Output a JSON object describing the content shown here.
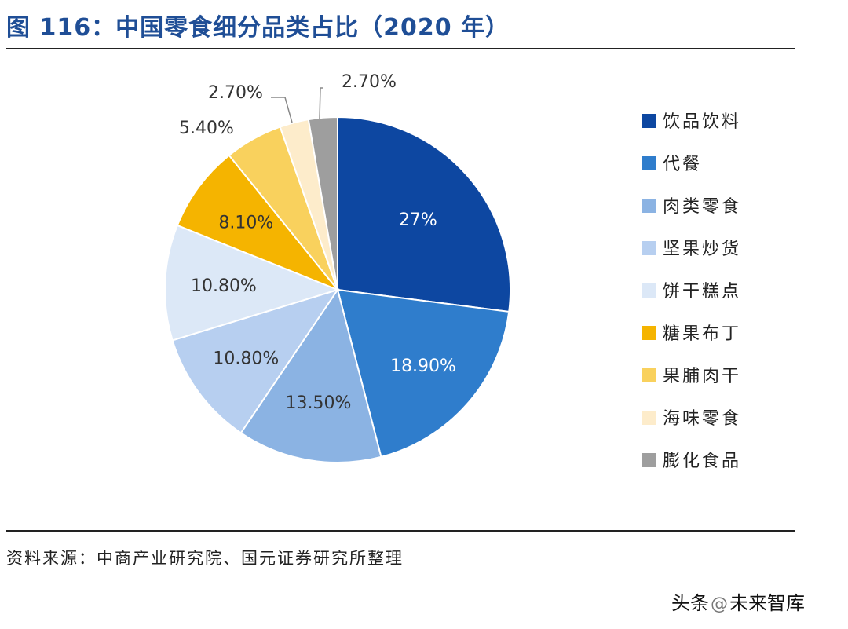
{
  "header": {
    "title": "图 116：中国零食细分品类占比（2020 年）"
  },
  "footer": {
    "source": "资料来源：中商产业研究院、国元证券研究所整理",
    "watermark_prefix": "头条",
    "watermark_name": "未来智库"
  },
  "chart_data": {
    "type": "pie",
    "title": "中国零食细分品类占比（2020 年）",
    "legend_position": "right",
    "start": "12 o'clock, clockwise",
    "slices": [
      {
        "name": "饮品饮料",
        "value": 27.0,
        "label": "27%",
        "color": "#0d47a1"
      },
      {
        "name": "代餐",
        "value": 18.9,
        "label": "18.90%",
        "color": "#2f7dcc"
      },
      {
        "name": "肉类零食",
        "value": 13.5,
        "label": "13.50%",
        "color": "#8bb3e3"
      },
      {
        "name": "坚果炒货",
        "value": 10.8,
        "label": "10.80%",
        "color": "#b7cff0"
      },
      {
        "name": "饼干糕点",
        "value": 10.8,
        "label": "10.80%",
        "color": "#dce8f7"
      },
      {
        "name": "糖果布丁",
        "value": 8.1,
        "label": "8.10%",
        "color": "#f5b400"
      },
      {
        "name": "果脯肉干",
        "value": 5.4,
        "label": "5.40%",
        "color": "#f9d15d"
      },
      {
        "name": "海味零食",
        "value": 2.7,
        "label": "2.70%",
        "color": "#fdeccb"
      },
      {
        "name": "膨化食品",
        "value": 2.7,
        "label": "2.70%",
        "color": "#9e9e9e"
      }
    ]
  }
}
